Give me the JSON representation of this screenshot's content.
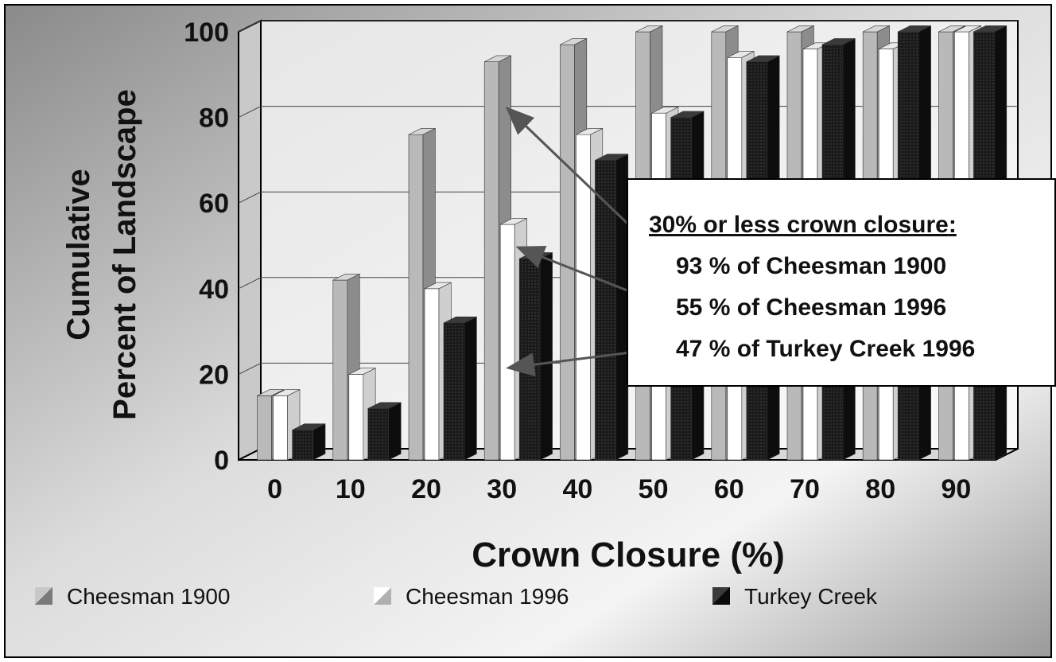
{
  "chart_data": {
    "type": "bar",
    "style": "3d-cumulative-bar",
    "categories": [
      "0",
      "10",
      "20",
      "30",
      "40",
      "50",
      "60",
      "70",
      "80",
      "90"
    ],
    "series": [
      {
        "name": "Cheesman 1900",
        "values": [
          15,
          42,
          76,
          93,
          97,
          100,
          100,
          100,
          100,
          100
        ],
        "color": "#b4b4b4"
      },
      {
        "name": "Cheesman 1996",
        "values": [
          15,
          20,
          40,
          55,
          76,
          81,
          94,
          96,
          96,
          100
        ],
        "color": "#ffffff"
      },
      {
        "name": "Turkey Creek",
        "values": [
          7,
          12,
          32,
          47,
          70,
          80,
          93,
          97,
          100,
          100
        ],
        "color": "#1c1c1c"
      }
    ],
    "ylabel_lines": [
      "Cumulative",
      "Percent of Landscape"
    ],
    "xlabel": "Crown Closure (%)",
    "ylim": [
      0,
      100
    ],
    "yticks": [
      "0",
      "20",
      "40",
      "60",
      "80",
      "100"
    ],
    "grid": true,
    "legend_position": "bottom",
    "annotation": {
      "heading": "30% or less crown closure",
      "heading_suffix": ":",
      "items": [
        "93 % of Cheesman 1900",
        "55 % of Cheesman 1996",
        "47 % of Turkey Creek 1996"
      ]
    }
  }
}
